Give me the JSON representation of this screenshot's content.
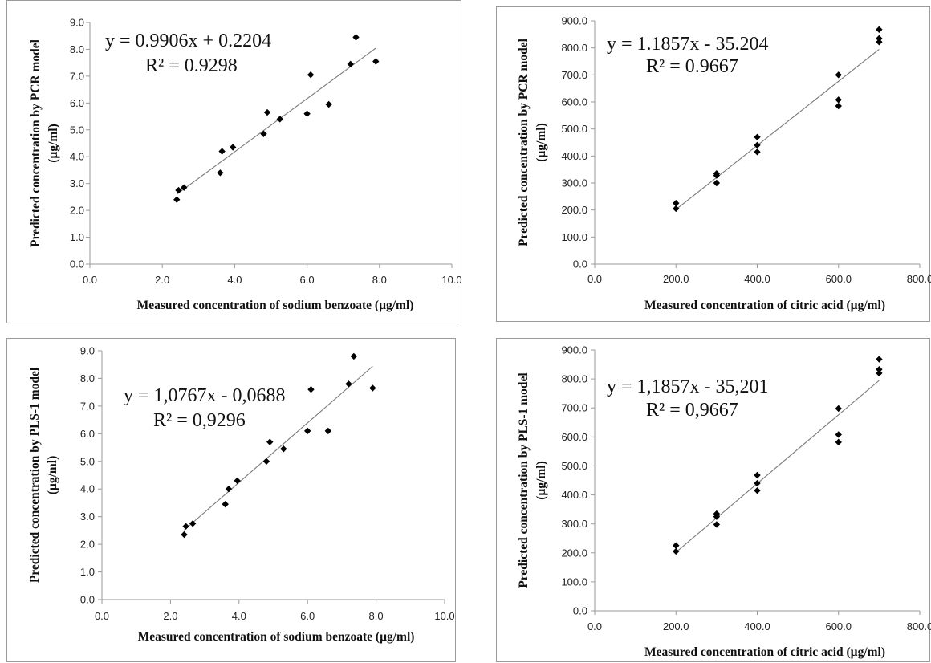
{
  "chart_data": [
    {
      "type": "scatter",
      "xlabel": "Measured concentration of sodium benzoate  (µg/ml)",
      "ylabel": "Predicted concentration by PCR model",
      "ylabel_unit": "(µg/ml)",
      "xlim": [
        0,
        10
      ],
      "ylim": [
        0,
        9
      ],
      "x_ticks": [
        "0.0",
        "2.0",
        "4.0",
        "6.0",
        "8.0",
        "10.0"
      ],
      "y_ticks": [
        "0.0",
        "1.0",
        "2.0",
        "3.0",
        "4.0",
        "5.0",
        "6.0",
        "7.0",
        "8.0",
        "9.0"
      ],
      "equation": "y = 0.9906x + 0.2204",
      "r_squared": "R² = 0.9298",
      "trendline": {
        "slope": 0.9906,
        "intercept": 0.2204,
        "x_range": [
          2.4,
          7.9
        ]
      },
      "points": [
        {
          "x": 2.4,
          "y": 2.4
        },
        {
          "x": 2.45,
          "y": 2.75
        },
        {
          "x": 2.6,
          "y": 2.85
        },
        {
          "x": 3.6,
          "y": 3.4
        },
        {
          "x": 3.65,
          "y": 4.2
        },
        {
          "x": 3.95,
          "y": 4.35
        },
        {
          "x": 4.8,
          "y": 4.85
        },
        {
          "x": 4.9,
          "y": 5.65
        },
        {
          "x": 5.25,
          "y": 5.4
        },
        {
          "x": 6.0,
          "y": 5.6
        },
        {
          "x": 6.1,
          "y": 7.05
        },
        {
          "x": 6.6,
          "y": 5.95
        },
        {
          "x": 7.2,
          "y": 7.45
        },
        {
          "x": 7.35,
          "y": 8.45
        },
        {
          "x": 7.9,
          "y": 7.55
        }
      ]
    },
    {
      "type": "scatter",
      "xlabel": "Measured concentration of citric acid  (µg/ml)",
      "ylabel": "Predicted concentration by PCR model",
      "ylabel_unit": "(µg/ml)",
      "xlim": [
        0,
        800
      ],
      "ylim": [
        0,
        900
      ],
      "x_ticks": [
        "0.0",
        "200.0",
        "400.0",
        "600.0",
        "800.0"
      ],
      "y_ticks": [
        "0.0",
        "100.0",
        "200.0",
        "300.0",
        "400.0",
        "500.0",
        "600.0",
        "700.0",
        "800.0",
        "900.0"
      ],
      "equation": "y = 1.1857x - 35.204",
      "r_squared": "R² = 0.9667",
      "trendline": {
        "slope": 1.1857,
        "intercept": -35.204,
        "x_range": [
          200,
          700
        ]
      },
      "points": [
        {
          "x": 200,
          "y": 225
        },
        {
          "x": 200,
          "y": 205
        },
        {
          "x": 300,
          "y": 335
        },
        {
          "x": 300,
          "y": 328
        },
        {
          "x": 300,
          "y": 300
        },
        {
          "x": 400,
          "y": 470
        },
        {
          "x": 400,
          "y": 440
        },
        {
          "x": 400,
          "y": 415
        },
        {
          "x": 600,
          "y": 700
        },
        {
          "x": 600,
          "y": 608
        },
        {
          "x": 600,
          "y": 585
        },
        {
          "x": 700,
          "y": 868
        },
        {
          "x": 700,
          "y": 835
        },
        {
          "x": 700,
          "y": 822
        }
      ]
    },
    {
      "type": "scatter",
      "xlabel": "Measured concentration of sodium benzoate  (µg/ml)",
      "ylabel": "Predicted concentration by PLS-1 model",
      "ylabel_unit": "(µg/ml)",
      "xlim": [
        0,
        10
      ],
      "ylim": [
        0,
        9
      ],
      "x_ticks": [
        "0.0",
        "2.0",
        "4.0",
        "6.0",
        "8.0",
        "10.0"
      ],
      "y_ticks": [
        "0.0",
        "1.0",
        "2.0",
        "3.0",
        "4.0",
        "5.0",
        "6.0",
        "7.0",
        "8.0",
        "9.0"
      ],
      "equation": "y = 1,0767x - 0,0688",
      "r_squared": "R² = 0,9296",
      "trendline": {
        "slope": 1.0767,
        "intercept": -0.0688,
        "x_range": [
          2.4,
          7.9
        ]
      },
      "points": [
        {
          "x": 2.4,
          "y": 2.35
        },
        {
          "x": 2.45,
          "y": 2.65
        },
        {
          "x": 2.65,
          "y": 2.75
        },
        {
          "x": 3.6,
          "y": 3.45
        },
        {
          "x": 3.7,
          "y": 4.0
        },
        {
          "x": 3.95,
          "y": 4.3
        },
        {
          "x": 4.8,
          "y": 5.0
        },
        {
          "x": 4.9,
          "y": 5.7
        },
        {
          "x": 5.3,
          "y": 5.45
        },
        {
          "x": 6.0,
          "y": 6.1
        },
        {
          "x": 6.1,
          "y": 7.6
        },
        {
          "x": 6.6,
          "y": 6.1
        },
        {
          "x": 7.2,
          "y": 7.8
        },
        {
          "x": 7.35,
          "y": 8.8
        },
        {
          "x": 7.9,
          "y": 7.65
        }
      ]
    },
    {
      "type": "scatter",
      "xlabel": "Measured concentration of citric acid  (µg/ml)",
      "ylabel": "Predicted concentration by PLS-1 model",
      "ylabel_unit": "(µg/ml)",
      "xlim": [
        0,
        800
      ],
      "ylim": [
        0,
        900
      ],
      "x_ticks": [
        "0.0",
        "200.0",
        "400.0",
        "600.0",
        "800.0"
      ],
      "y_ticks": [
        "0.0",
        "100.0",
        "200.0",
        "300.0",
        "400.0",
        "500.0",
        "600.0",
        "700.0",
        "800.0",
        "900.0"
      ],
      "equation": "y = 1,1857x - 35,201",
      "r_squared": "R² = 0,9667",
      "trendline": {
        "slope": 1.1857,
        "intercept": -35.201,
        "x_range": [
          200,
          700
        ]
      },
      "points": [
        {
          "x": 200,
          "y": 225
        },
        {
          "x": 200,
          "y": 205
        },
        {
          "x": 300,
          "y": 335
        },
        {
          "x": 300,
          "y": 325
        },
        {
          "x": 300,
          "y": 298
        },
        {
          "x": 400,
          "y": 468
        },
        {
          "x": 400,
          "y": 440
        },
        {
          "x": 400,
          "y": 415
        },
        {
          "x": 600,
          "y": 698
        },
        {
          "x": 600,
          "y": 608
        },
        {
          "x": 600,
          "y": 582
        },
        {
          "x": 700,
          "y": 868
        },
        {
          "x": 700,
          "y": 833
        },
        {
          "x": 700,
          "y": 820
        }
      ]
    }
  ]
}
